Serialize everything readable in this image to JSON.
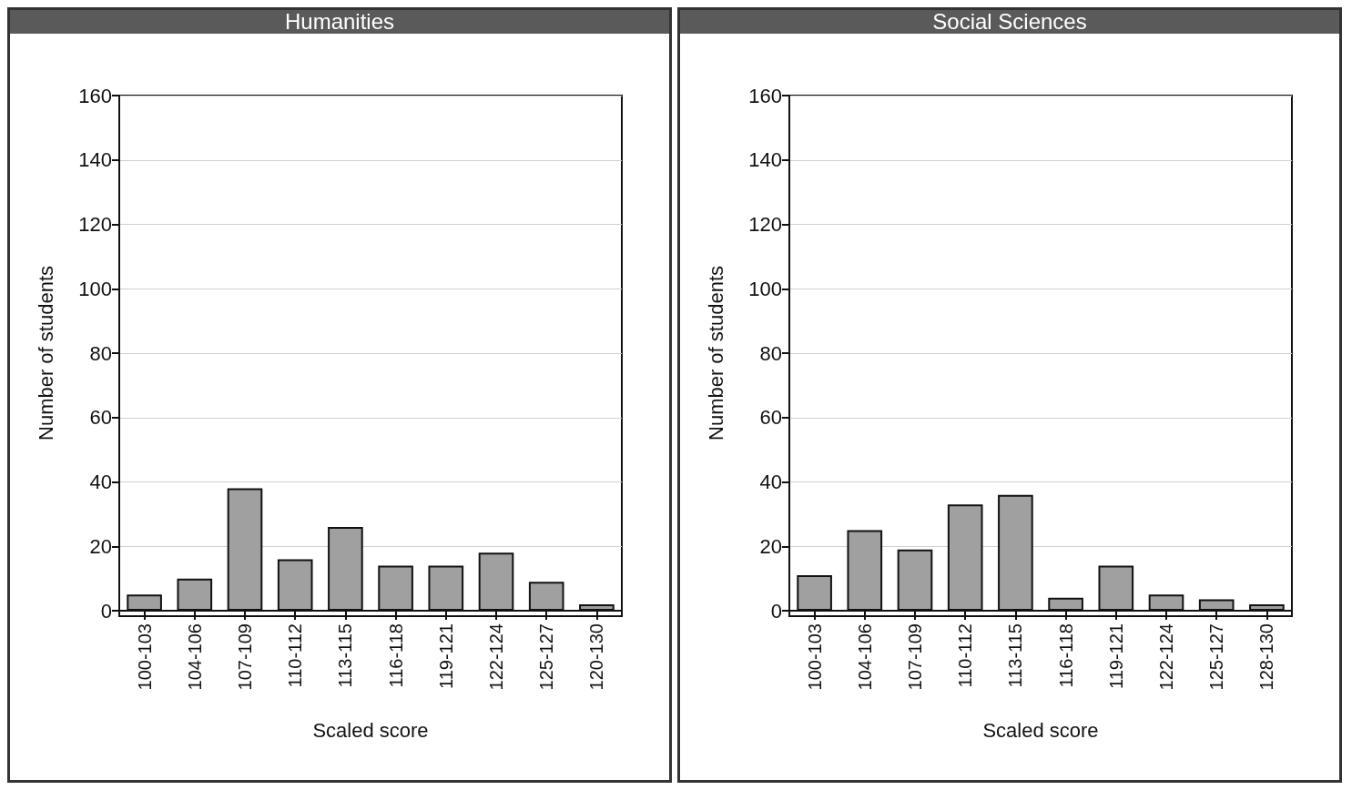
{
  "chart_data": [
    {
      "type": "bar",
      "title": "Humanities",
      "xlabel": "Scaled score",
      "ylabel": "Number of students",
      "categories": [
        "100-103",
        "104-106",
        "107-109",
        "110-112",
        "113-115",
        "116-118",
        "119-121",
        "122-124",
        "125-127",
        "120-130"
      ],
      "series": [
        {
          "color": "#a0a0a0",
          "values": [
            5,
            10,
            38,
            16,
            26,
            14,
            14,
            18,
            9,
            2
          ]
        }
      ],
      "ylim": [
        0,
        160
      ],
      "yticks": [
        0,
        20,
        40,
        60,
        80,
        100,
        120,
        140,
        160
      ],
      "grid": "y"
    },
    {
      "type": "bar",
      "title": "Social Sciences",
      "xlabel": "Scaled score",
      "ylabel": "Number of students",
      "categories": [
        "100-103",
        "104-106",
        "107-109",
        "110-112",
        "113-115",
        "116-118",
        "119-121",
        "122-124",
        "125-127",
        "128-130"
      ],
      "series": [
        {
          "color": "#a0a0a0",
          "values": [
            11,
            25,
            19,
            33,
            36,
            4,
            14,
            5,
            3.5,
            2
          ]
        }
      ],
      "ylim": [
        0,
        160
      ],
      "yticks": [
        0,
        20,
        40,
        60,
        80,
        100,
        120,
        140,
        160
      ],
      "grid": "y"
    }
  ]
}
